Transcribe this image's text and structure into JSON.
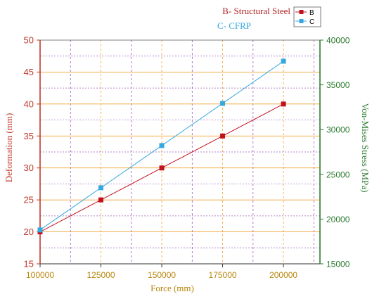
{
  "chart_data": {
    "type": "line",
    "title_lines": [
      {
        "text": "B- Structural Steel",
        "color": "#b22222"
      },
      {
        "text": "C- CFRP",
        "color": "#35a8e0"
      }
    ],
    "xlabel": "Force (mm)",
    "ylabel": "Deformation (mm)",
    "y2label": "Von-Mises  Stress (MPa)",
    "xlim": [
      100000,
      215000
    ],
    "ylim": [
      15,
      50
    ],
    "y2lim": [
      15000,
      40000
    ],
    "x_ticks": [
      100000,
      125000,
      150000,
      175000,
      200000
    ],
    "y_ticks": [
      15,
      20,
      25,
      30,
      35,
      40,
      45,
      50
    ],
    "y2_ticks": [
      15000,
      20000,
      25000,
      30000,
      35000,
      40000
    ],
    "x_tick_labels": [
      "100000",
      "125000",
      "150000",
      "175000",
      "200000"
    ],
    "y_tick_labels": [
      "15",
      "20",
      "25",
      "30",
      "35",
      "40",
      "45",
      "50"
    ],
    "y2_tick_labels": [
      "15000",
      "20000",
      "25000",
      "30000",
      "35000",
      "40000"
    ],
    "grid": true,
    "legend_position": "top-right",
    "colors": {
      "left_axis": "#c0392b",
      "right_axis": "#2e7d32",
      "x_axis_label": "#b8860b",
      "grid_major": "#f0a030",
      "grid_minor": "#9b59b6"
    },
    "series": [
      {
        "name": "B",
        "axis": "left",
        "color": "#c0111d",
        "x": [
          100000,
          125000,
          150000,
          175000,
          200000
        ],
        "values": [
          20,
          25,
          30,
          35,
          40
        ]
      },
      {
        "name": "C",
        "axis": "left",
        "color": "#35a8e0",
        "x": [
          100000,
          125000,
          150000,
          175000,
          200000
        ],
        "values": [
          20.3,
          26.9,
          33.5,
          40.1,
          46.7
        ]
      }
    ]
  }
}
